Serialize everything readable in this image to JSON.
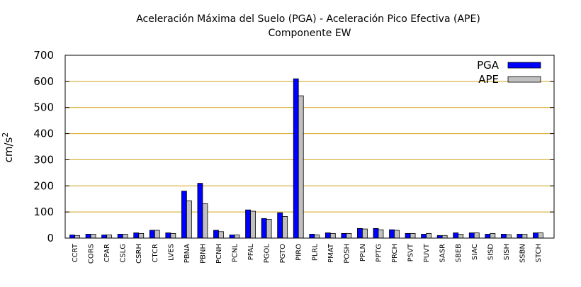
{
  "chart_data": {
    "type": "bar",
    "title": "Aceleración Máxima del Suelo (PGA) -  Aceleración Pico Efectiva (APE)",
    "subtitle": "Componente EW",
    "xlabel": "",
    "ylabel": "cm/s",
    "ylabel_superscript": "2",
    "ylim": [
      0,
      700
    ],
    "yticks": [
      0,
      100,
      200,
      300,
      400,
      500,
      600,
      700
    ],
    "grid": "horizontal",
    "legend_position": "top-right",
    "categories": [
      "CCRT",
      "CORS",
      "CPAR",
      "CSLG",
      "CSRH",
      "CTCR",
      "LVES",
      "PBNA",
      "PBNH",
      "PCNH",
      "PCNL",
      "PFAL",
      "PGOL",
      "PGTO",
      "PIRO",
      "PLRL",
      "PMAT",
      "POSH",
      "PPLN",
      "PPTG",
      "PRCH",
      "PSVT",
      "PUVT",
      "SASR",
      "SBEB",
      "SIAC",
      "SISD",
      "SISH",
      "SSBN",
      "STCH"
    ],
    "series": [
      {
        "name": "PGA",
        "color": "#0000ff",
        "values": [
          12,
          15,
          12,
          15,
          20,
          30,
          20,
          180,
          210,
          30,
          12,
          108,
          75,
          97,
          610,
          15,
          20,
          18,
          37,
          37,
          32,
          18,
          15,
          10,
          20,
          20,
          15,
          15,
          15,
          20
        ]
      },
      {
        "name": "APE",
        "color": "#c0c0c0",
        "values": [
          10,
          15,
          12,
          15,
          18,
          30,
          18,
          143,
          132,
          25,
          12,
          103,
          72,
          83,
          545,
          12,
          18,
          18,
          35,
          32,
          30,
          18,
          18,
          10,
          15,
          20,
          18,
          13,
          15,
          20
        ]
      }
    ],
    "colors": {
      "grid": "#d4a017",
      "frame": "#000000"
    }
  }
}
